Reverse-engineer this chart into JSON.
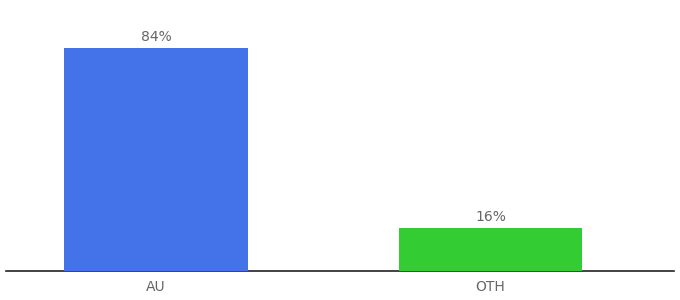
{
  "categories": [
    "AU",
    "OTH"
  ],
  "values": [
    84,
    16
  ],
  "bar_colors": [
    "#4472e8",
    "#33cc33"
  ],
  "label_texts": [
    "84%",
    "16%"
  ],
  "ylim": [
    0,
    100
  ],
  "background_color": "#ffffff",
  "label_fontsize": 10,
  "tick_fontsize": 10,
  "label_color": "#666666",
  "bar_width": 0.55,
  "xlim": [
    -0.45,
    1.55
  ]
}
